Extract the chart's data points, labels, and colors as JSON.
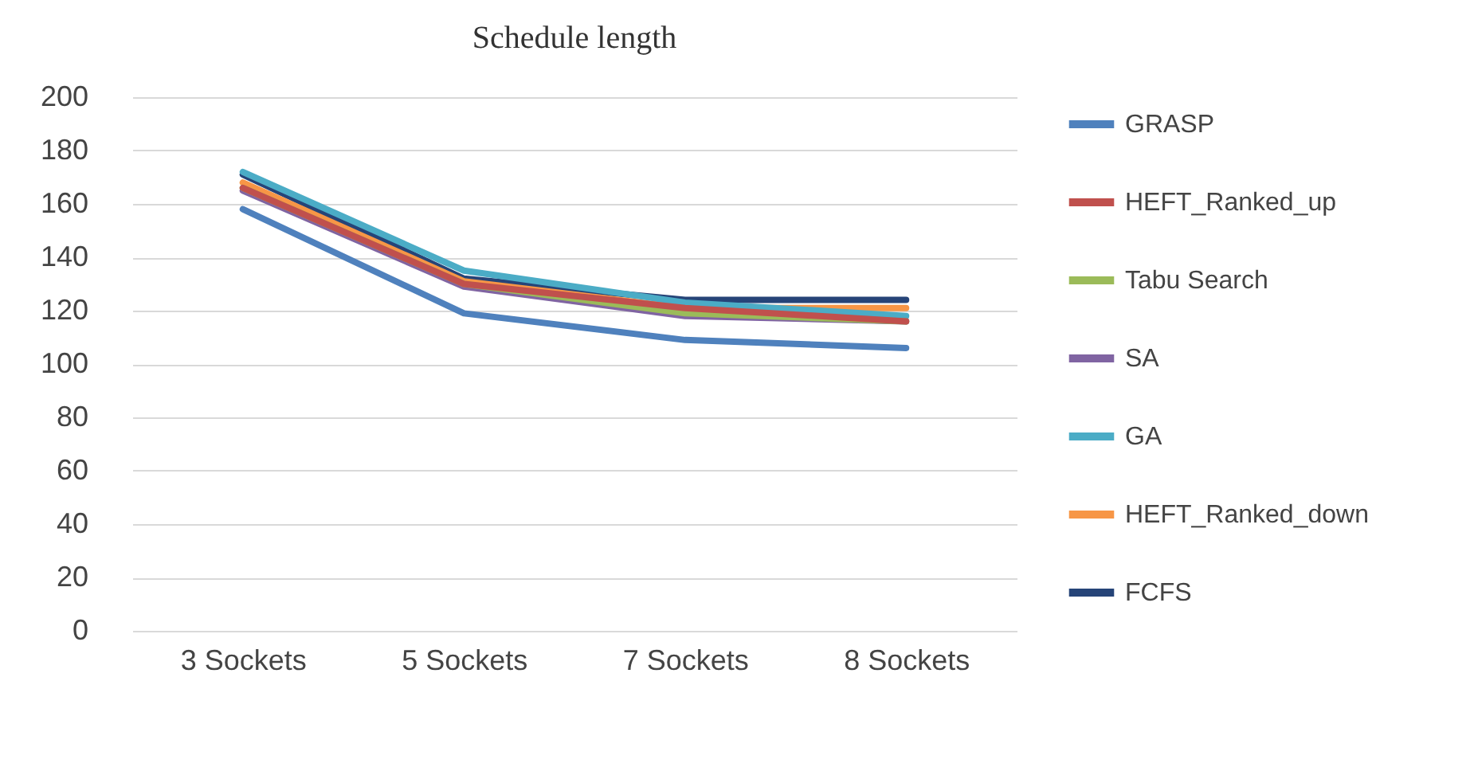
{
  "chart_data": {
    "type": "line",
    "title": "Schedule length",
    "categories": [
      "3 Sockets",
      "5 Sockets",
      "7 Sockets",
      "8 Sockets"
    ],
    "series": [
      {
        "name": "GRASP",
        "color": "#4f81bd",
        "values": [
          158,
          119,
          109,
          106
        ]
      },
      {
        "name": "HEFT_Ranked_up",
        "color": "#c0504d",
        "values": [
          166,
          130,
          121,
          116
        ]
      },
      {
        "name": "Tabu Search",
        "color": "#9bbb59",
        "values": [
          166,
          130,
          119,
          116
        ]
      },
      {
        "name": "SA",
        "color": "#8064a2",
        "values": [
          165,
          129,
          118,
          116
        ]
      },
      {
        "name": "GA",
        "color": "#4bacc6",
        "values": [
          172,
          135,
          123,
          118
        ]
      },
      {
        "name": "HEFT_Ranked_down",
        "color": "#f79646",
        "values": [
          168,
          131,
          121,
          121
        ]
      },
      {
        "name": "FCFS",
        "color": "#264478",
        "values": [
          171,
          132,
          124,
          124
        ]
      }
    ],
    "ylim": [
      0,
      200
    ],
    "yticks": [
      0,
      20,
      40,
      60,
      80,
      100,
      120,
      140,
      160,
      180,
      200
    ],
    "grid": "y",
    "legend": "right",
    "marker": "none",
    "line_style": "solid"
  }
}
